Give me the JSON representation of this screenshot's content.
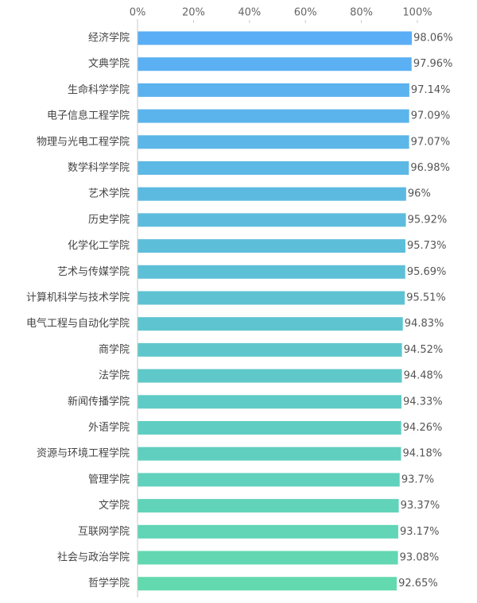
{
  "chart_data": {
    "type": "bar",
    "orientation": "horizontal",
    "title": "",
    "xlabel": "",
    "ylabel": "",
    "xlim": [
      0,
      100
    ],
    "x_ticks": [
      "0%",
      "20%",
      "40%",
      "60%",
      "80%",
      "100%"
    ],
    "x_tick_values": [
      0,
      20,
      40,
      60,
      80,
      100
    ],
    "grid": false,
    "legend": "none",
    "categories": [
      "经济学院",
      "文典学院",
      "生命科学学院",
      "电子信息工程学院",
      "物理与光电工程学院",
      "数学科学学院",
      "艺术学院",
      "历史学院",
      "化学化工学院",
      "艺术与传媒学院",
      "计算机科学与技术学院",
      "电气工程与自动化学院",
      "商学院",
      "法学院",
      "新闻传播学院",
      "外语学院",
      "资源与环境工程学院",
      "管理学院",
      "文学院",
      "互联网学院",
      "社会与政治学院",
      "哲学学院"
    ],
    "values": [
      98.06,
      97.96,
      97.14,
      97.09,
      97.07,
      96.98,
      96,
      95.92,
      95.73,
      95.69,
      95.51,
      94.83,
      94.52,
      94.48,
      94.33,
      94.26,
      94.18,
      93.7,
      93.37,
      93.17,
      93.08,
      92.65
    ],
    "value_labels": [
      "98.06%",
      "97.96%",
      "97.14%",
      "97.09%",
      "97.07%",
      "96.98%",
      "96%",
      "95.92%",
      "95.73%",
      "95.69%",
      "95.51%",
      "94.83%",
      "94.52%",
      "94.48%",
      "94.33%",
      "94.26%",
      "94.18%",
      "93.7%",
      "93.37%",
      "93.17%",
      "93.08%",
      "92.65%"
    ],
    "colors": {
      "gradient_top": "#5aaef5",
      "gradient_bottom": "#62d9ae",
      "axis": "#c8c8c8",
      "label": "#444444"
    }
  }
}
